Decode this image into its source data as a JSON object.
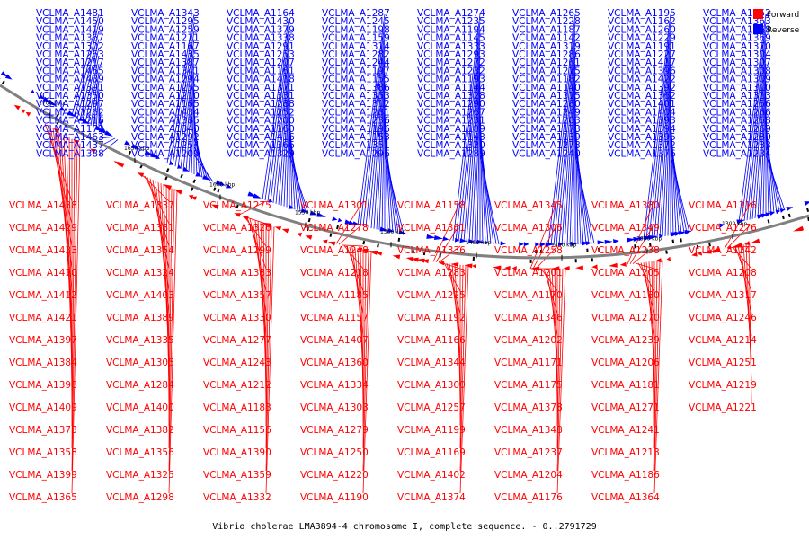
{
  "colors": {
    "forward": "#ff0000",
    "reverse": "#0000ff",
    "axis": "#808080",
    "text": "#000000"
  },
  "caption": "Vibrio cholerae LMA3894-4 chromosome I, complete sequence. - 0..2791729",
  "legend": [
    {
      "label": "Forward",
      "strand": "forward"
    },
    {
      "label": "Reverse",
      "strand": "reverse"
    }
  ],
  "ticks": [
    "1700 kbp",
    "1650 kbp",
    "1600 kbp",
    "1550 kbp",
    "1500 kbp",
    "1450 kbp",
    "1400 kbp",
    "1350 kbp",
    "1300 kbp"
  ],
  "reverse_labels": [
    "VCLMA_A1481",
    "VCLMA_A1450",
    "VCLMA_A1419",
    "VCLMA_A1367",
    "VCLMA_A1302",
    "VCLMA_A1263",
    "VCLMA_A1217",
    "VCLMA_A1465",
    "VCLMA_A1439",
    "VCLMA_A1391",
    "VCLMA_A1350",
    "VCLMA_A1297",
    "VCLMA_A1262",
    "VCLMA_A1216",
    "VCLMA_A1172",
    "VCLMA_A1463",
    "VCLMA_A1437",
    "VCLMA_A1388",
    "VCLMA_A1343",
    "VCLMA_A1295",
    "VCLMA_A1259",
    "VCLMA_A1211",
    "VCLMA_A1167",
    "VCLMA_A1435",
    "VCLMA_A1387",
    "VCLMA_A1341",
    "VCLMA_A1294",
    "VCLMA_A1255",
    "VCLMA_A1210",
    "VCLMA_A1165",
    "VCLMA_A1434",
    "VCLMA_A1385",
    "VCLMA_A1340",
    "VCLMA_A1292",
    "VCLMA_A1254",
    "VCLMA_A1209",
    "VCLMA_A1164",
    "VCLMA_A1430",
    "VCLMA_A1379",
    "VCLMA_A1338",
    "VCLMA_A1291",
    "VCLMA_A1253",
    "VCLMA_A1207",
    "VCLMA_A1161",
    "VCLMA_A1418",
    "VCLMA_A1371",
    "VCLMA_A1331",
    "VCLMA_A1288",
    "VCLMA_A1252",
    "VCLMA_A1200",
    "VCLMA_A1160",
    "VCLMA_A1416",
    "VCLMA_A1366",
    "VCLMA_A1329",
    "VCLMA_A1287",
    "VCLMA_A1245",
    "VCLMA_A1198",
    "VCLMA_A1159",
    "VCLMA_A1314",
    "VCLMA_A1282",
    "VCLMA_A1244",
    "VCLMA_A1197",
    "VCLMA_A1155",
    "VCLMA_A1386",
    "VCLMA_A1353",
    "VCLMA_A1312",
    "VCLMA_A1281",
    "VCLMA_A1236",
    "VCLMA_A1196",
    "VCLMA_A1153",
    "VCLMA_A1351",
    "VCLMA_A1296",
    "VCLMA_A1274",
    "VCLMA_A1235",
    "VCLMA_A1194",
    "VCLMA_A1145",
    "VCLMA_A1333",
    "VCLMA_A1293",
    "VCLMA_A1272",
    "VCLMA_A1232",
    "VCLMA_A1193",
    "VCLMA_A1144",
    "VCLMA_A1328",
    "VCLMA_A1290",
    "VCLMA_A1267",
    "VCLMA_A1231",
    "VCLMA_A1189",
    "VCLMA_A1143",
    "VCLMA_A1320",
    "VCLMA_A1289",
    "VCLMA_A1265",
    "VCLMA_A1228",
    "VCLMA_A1187",
    "VCLMA_A1142",
    "VCLMA_A1319",
    "VCLMA_A1286",
    "VCLMA_A1261",
    "VCLMA_A1215",
    "VCLMA_A1182",
    "VCLMA_A1140",
    "VCLMA_A1315",
    "VCLMA_A1280",
    "VCLMA_A1249",
    "VCLMA_A1203",
    "VCLMA_A1173",
    "VCLMA_A1139",
    "VCLMA_A1273",
    "VCLMA_A1240",
    "VCLMA_A1195",
    "VCLMA_A1162",
    "VCLMA_A1260",
    "VCLMA_A1229",
    "VCLMA_A1191",
    "VCLMA_A1227",
    "VCLMA_A1417",
    "VCLMA_A1396",
    "VCLMA_A1422",
    "VCLMA_A1392",
    "VCLMA_A1362",
    "VCLMA_A1401",
    "VCLMA_A1404",
    "VCLMA_A1393",
    "VCLMA_A1394",
    "VCLMA_A1395",
    "VCLMA_A1372",
    "VCLMA_A1376",
    "VCLMA_A1352",
    "VCLMA_A1363",
    "VCLMA_A1368",
    "VCLMA_A1369",
    "VCLMA_A1370",
    "VCLMA_A1304",
    "VCLMA_A1307",
    "VCLMA_A1308",
    "VCLMA_A1309",
    "VCLMA_A1310",
    "VCLMA_A1313",
    "VCLMA_A1256",
    "VCLMA_A1266",
    "VCLMA_A1268",
    "VCLMA_A1269",
    "VCLMA_A1230",
    "VCLMA_A1233",
    "VCLMA_A1234"
  ],
  "forward_labels": [
    "VCLMA_A1438",
    "VCLMA_A1429",
    "VCLMA_A1433",
    "VCLMA_A1410",
    "VCLMA_A1412",
    "VCLMA_A1421",
    "VCLMA_A1397",
    "VCLMA_A1384",
    "VCLMA_A1398",
    "VCLMA_A1409",
    "VCLMA_A1373",
    "VCLMA_A1358",
    "VCLMA_A1399",
    "VCLMA_A1365",
    "VCLMA_A1337",
    "VCLMA_A1381",
    "VCLMA_A1354",
    "VCLMA_A1324",
    "VCLMA_A1403",
    "VCLMA_A1389",
    "VCLMA_A1335",
    "VCLMA_A1305",
    "VCLMA_A1284",
    "VCLMA_A1400",
    "VCLMA_A1382",
    "VCLMA_A1356",
    "VCLMA_A1325",
    "VCLMA_A1298",
    "VCLMA_A1275",
    "VCLMA_A1326",
    "VCLMA_A1299",
    "VCLMA_A1383",
    "VCLMA_A1357",
    "VCLMA_A1330",
    "VCLMA_A1277",
    "VCLMA_A1243",
    "VCLMA_A1212",
    "VCLMA_A1183",
    "VCLMA_A1156",
    "VCLMA_A1390",
    "VCLMA_A1359",
    "VCLMA_A1332",
    "VCLMA_A1301",
    "VCLMA_A1278",
    "VCLMA_A1248",
    "VCLMA_A1218",
    "VCLMA_A1185",
    "VCLMA_A1157",
    "VCLMA_A1407",
    "VCLMA_A1360",
    "VCLMA_A1334",
    "VCLMA_A1303",
    "VCLMA_A1279",
    "VCLMA_A1250",
    "VCLMA_A1220",
    "VCLMA_A1190",
    "VCLMA_A1158",
    "VCLMA_A1361",
    "VCLMA_A1336",
    "VCLMA_A1283",
    "VCLMA_A1225",
    "VCLMA_A1192",
    "VCLMA_A1166",
    "VCLMA_A1344",
    "VCLMA_A1300",
    "VCLMA_A1257",
    "VCLMA_A1199",
    "VCLMA_A1169",
    "VCLMA_A1402",
    "VCLMA_A1374",
    "VCLMA_A1345",
    "VCLMA_A1306",
    "VCLMA_A1258",
    "VCLMA_A1201",
    "VCLMA_A1170",
    "VCLMA_A1346",
    "VCLMA_A1202",
    "VCLMA_A1171",
    "VCLMA_A1175",
    "VCLMA_A1378",
    "VCLMA_A1348",
    "VCLMA_A1237",
    "VCLMA_A1204",
    "VCLMA_A1176",
    "VCLMA_A1380",
    "VCLMA_A1349",
    "VCLMA_A1238",
    "VCLMA_A1205",
    "VCLMA_A1180",
    "VCLMA_A1270",
    "VCLMA_A1239",
    "VCLMA_A1206",
    "VCLMA_A1181",
    "VCLMA_A1271",
    "VCLMA_A1241",
    "VCLMA_A1213",
    "VCLMA_A1186",
    "VCLMA_A1364",
    "VCLMA_A1316",
    "VCLMA_A1276",
    "VCLMA_A1242",
    "VCLMA_A1208",
    "VCLMA_A1317",
    "VCLMA_A1246",
    "VCLMA_A1214",
    "VCLMA_A1251",
    "VCLMA_A1219",
    "VCLMA_A1221"
  ]
}
